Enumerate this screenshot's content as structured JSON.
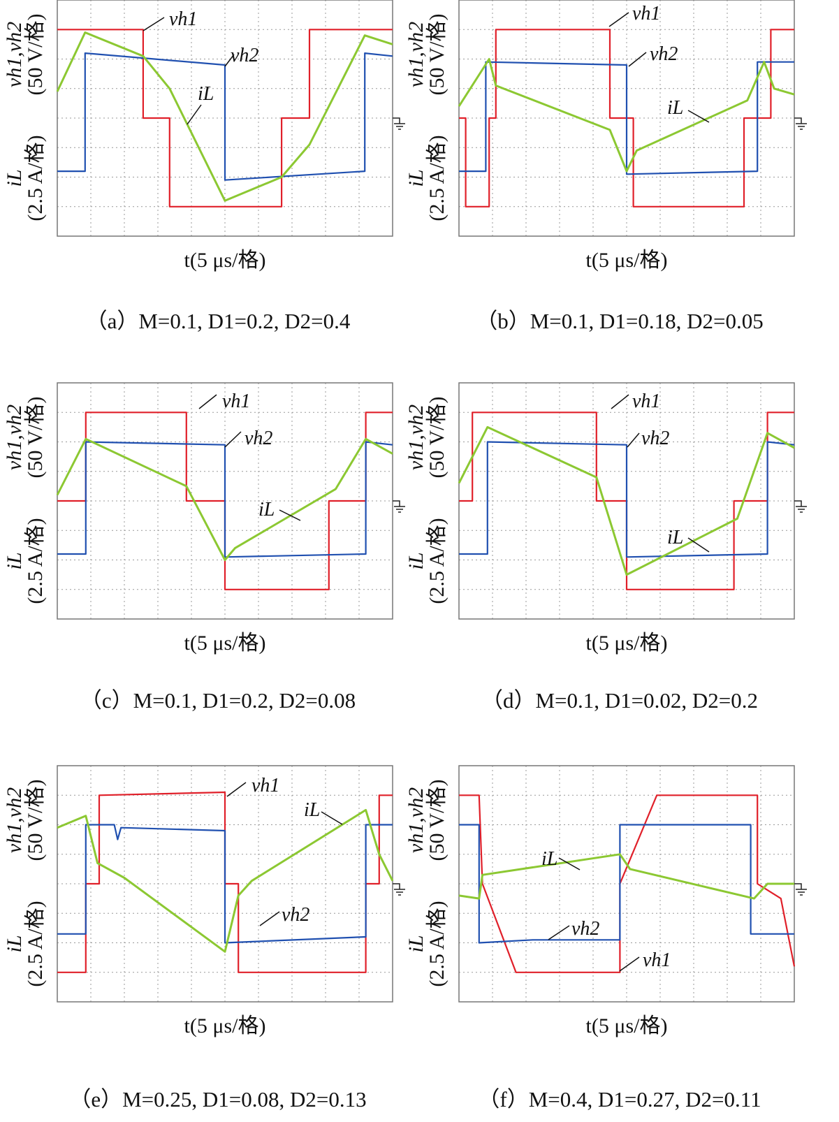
{
  "chart_data": [
    {
      "type": "line",
      "xlim": [
        0,
        10
      ],
      "ylim": [
        0,
        8
      ],
      "grid": true,
      "ylabel_top": "vh1,vh2",
      "ylabel_top_unit": "(50 V/格)",
      "ylabel_bottom": "iL",
      "ylabel_bottom_unit": "(2.5 A/格)",
      "xlabel": "t(5 μs/格)",
      "caption": "（a）M=0.1, D1=0.2, D2=0.4",
      "series": [
        {
          "name": "vh1",
          "color": "#e0202a",
          "x": [
            0,
            2.56,
            2.56,
            3.35,
            3.35,
            6.69,
            6.69,
            7.52,
            7.52,
            10
          ],
          "values": [
            7,
            7,
            4,
            4,
            1,
            1,
            4,
            4,
            7,
            7
          ]
        },
        {
          "name": "vh2",
          "color": "#2050b0",
          "x": [
            0,
            0.83,
            0.83,
            5.0,
            5.0,
            9.17,
            9.17,
            10
          ],
          "values": [
            2.2,
            2.2,
            6.2,
            5.8,
            1.9,
            2.2,
            6.2,
            6.1
          ]
        },
        {
          "name": "iL",
          "color": "#8cc832",
          "x": [
            0,
            0.83,
            2.56,
            3.35,
            5.0,
            6.69,
            7.52,
            9.17,
            10
          ],
          "values": [
            4.9,
            6.9,
            6.1,
            5.0,
            1.2,
            2.0,
            3.1,
            6.8,
            6.5
          ]
        }
      ]
    },
    {
      "type": "line",
      "xlim": [
        0,
        10
      ],
      "ylim": [
        0,
        8
      ],
      "grid": true,
      "ylabel_top": "vh1,vh2",
      "ylabel_top_unit": "(50 V/格)",
      "ylabel_bottom": "iL",
      "ylabel_bottom_unit": "(2.5 A/格)",
      "xlabel": "t(5 μs/格)",
      "caption": "（b）M=0.1, D1=0.18, D2=0.05",
      "series": [
        {
          "name": "vh1",
          "color": "#e0202a",
          "x": [
            0,
            0.2,
            0.2,
            0.9,
            0.9,
            1.1,
            1.1,
            4.5,
            4.5,
            5.2,
            5.2,
            8.5,
            8.5,
            9.3,
            9.3,
            10
          ],
          "values": [
            4,
            4,
            1,
            1,
            4,
            4,
            7,
            7,
            4,
            4,
            1,
            1,
            4,
            4,
            7,
            7
          ]
        },
        {
          "name": "vh2",
          "color": "#2050b0",
          "x": [
            0,
            0.8,
            0.8,
            5.0,
            5.0,
            8.9,
            8.9,
            10
          ],
          "values": [
            2.2,
            2.2,
            5.9,
            5.8,
            2.1,
            2.2,
            5.9,
            5.9
          ]
        },
        {
          "name": "iL",
          "color": "#8cc832",
          "x": [
            0,
            0.9,
            1.1,
            4.5,
            5.0,
            5.3,
            8.6,
            9.1,
            9.4,
            10
          ],
          "values": [
            4.4,
            6.0,
            5.1,
            3.6,
            2.2,
            2.9,
            4.6,
            5.9,
            5.0,
            4.8
          ]
        }
      ]
    },
    {
      "type": "line",
      "xlim": [
        0,
        10
      ],
      "ylim": [
        0,
        8
      ],
      "grid": true,
      "ylabel_top": "vh1,vh2",
      "ylabel_top_unit": "(50 V/格)",
      "ylabel_bottom": "iL",
      "ylabel_bottom_unit": "(2.5 A/格)",
      "xlabel": "t(5 μs/格)",
      "caption": "（c）M=0.1, D1=0.2, D2=0.08",
      "series": [
        {
          "name": "vh1",
          "color": "#e0202a",
          "x": [
            0,
            0.85,
            0.85,
            3.85,
            3.85,
            5.0,
            5.0,
            8.1,
            8.1,
            9.2,
            9.2,
            10
          ],
          "values": [
            4,
            4,
            7,
            7,
            4,
            4,
            1,
            1,
            4,
            4,
            7,
            7
          ]
        },
        {
          "name": "vh2",
          "color": "#2050b0",
          "x": [
            0,
            0.85,
            0.85,
            5.0,
            5.0,
            9.2,
            9.2,
            10
          ],
          "values": [
            2.2,
            2.2,
            6.0,
            5.9,
            2.1,
            2.2,
            6.0,
            5.9
          ]
        },
        {
          "name": "iL",
          "color": "#8cc832",
          "x": [
            0,
            0.85,
            3.85,
            5.0,
            5.3,
            8.3,
            9.2,
            10
          ],
          "values": [
            4.2,
            6.1,
            4.5,
            2.0,
            2.4,
            4.4,
            6.1,
            5.6
          ]
        }
      ]
    },
    {
      "type": "line",
      "xlim": [
        0,
        10
      ],
      "ylim": [
        0,
        8
      ],
      "grid": true,
      "ylabel_top": "vh1,vh2",
      "ylabel_top_unit": "(50 V/格)",
      "ylabel_bottom": "iL",
      "ylabel_bottom_unit": "(2.5 A/格)",
      "xlabel": "t(5 μs/格)",
      "caption": "（d）M=0.1, D1=0.02, D2=0.2",
      "series": [
        {
          "name": "vh1",
          "color": "#e0202a",
          "x": [
            0,
            0.4,
            0.4,
            4.1,
            4.1,
            5.0,
            5.0,
            8.2,
            8.2,
            9.2,
            9.2,
            10
          ],
          "values": [
            4,
            4,
            7,
            7,
            4,
            4,
            1,
            1,
            4,
            4,
            7,
            7
          ]
        },
        {
          "name": "vh2",
          "color": "#2050b0",
          "x": [
            0,
            0.85,
            0.85,
            5.0,
            5.0,
            9.2,
            9.2,
            10
          ],
          "values": [
            2.2,
            2.2,
            6.0,
            5.9,
            2.1,
            2.2,
            6.0,
            5.9
          ]
        },
        {
          "name": "iL",
          "color": "#8cc832",
          "x": [
            0,
            0.85,
            4.1,
            5.0,
            8.3,
            9.2,
            10
          ],
          "values": [
            4.6,
            6.5,
            4.8,
            1.5,
            3.4,
            6.3,
            5.8
          ]
        }
      ]
    },
    {
      "type": "line",
      "xlim": [
        0,
        10
      ],
      "ylim": [
        0,
        8
      ],
      "grid": true,
      "ylabel_top": "vh1,vh2",
      "ylabel_top_unit": "(50 V/格)",
      "ylabel_bottom": "iL",
      "ylabel_bottom_unit": "(2.5 A/格)",
      "xlabel": "t(5 μs/格)",
      "caption": "（e）M=0.25, D1=0.08, D2=0.13",
      "series": [
        {
          "name": "vh1",
          "color": "#e0202a",
          "x": [
            0,
            0.85,
            0.85,
            1.25,
            1.25,
            5.0,
            5.0,
            5.4,
            5.4,
            9.2,
            9.2,
            9.6,
            9.6,
            10
          ],
          "values": [
            1,
            1,
            4,
            4,
            7,
            7.1,
            4,
            4,
            1,
            1,
            4,
            4,
            7,
            7
          ]
        },
        {
          "name": "vh2",
          "color": "#2050b0",
          "x": [
            0,
            0.85,
            0.85,
            1.7,
            1.8,
            1.9,
            5.0,
            5.0,
            9.2,
            9.2,
            10
          ],
          "values": [
            2.3,
            2.3,
            6.0,
            6.0,
            5.5,
            5.9,
            5.8,
            2.0,
            2.2,
            6.0,
            6.0
          ]
        },
        {
          "name": "iL",
          "color": "#8cc832",
          "x": [
            0,
            0.85,
            1.2,
            2.0,
            5.0,
            5.4,
            5.8,
            9.2,
            9.6,
            10
          ],
          "values": [
            5.9,
            6.3,
            4.7,
            4.2,
            1.7,
            3.6,
            4.1,
            6.5,
            5.0,
            4.1
          ]
        }
      ]
    },
    {
      "type": "line",
      "xlim": [
        0,
        10
      ],
      "ylim": [
        0,
        8
      ],
      "grid": true,
      "ylabel_top": "vh1,vh2",
      "ylabel_top_unit": "(50 V/格)",
      "ylabel_bottom": "iL",
      "ylabel_bottom_unit": "(2.5 A/格)",
      "xlabel": "t(5 μs/格)",
      "caption": "（f）M=0.4, D1=0.27, D2=0.11",
      "series": [
        {
          "name": "vh1",
          "color": "#e0202a",
          "x": [
            0,
            0.6,
            0.7,
            1.7,
            4.8,
            4.8,
            5.9,
            8.9,
            8.9,
            9.6,
            10
          ],
          "values": [
            7,
            7,
            4,
            1,
            1,
            4,
            7,
            7,
            4,
            3.5,
            1.2
          ]
        },
        {
          "name": "vh2",
          "color": "#2050b0",
          "x": [
            0,
            0.6,
            0.6,
            2.2,
            4.8,
            4.8,
            8.7,
            8.7,
            10
          ],
          "values": [
            6.0,
            6.0,
            2.0,
            2.1,
            2.1,
            6.0,
            6.0,
            2.3,
            2.3
          ]
        },
        {
          "name": "iL",
          "color": "#8cc832",
          "x": [
            0,
            0.6,
            0.7,
            4.8,
            5.1,
            8.8,
            9.2,
            10
          ],
          "values": [
            3.6,
            3.5,
            4.3,
            5.0,
            4.5,
            3.5,
            4.0,
            4.0
          ]
        }
      ]
    }
  ]
}
